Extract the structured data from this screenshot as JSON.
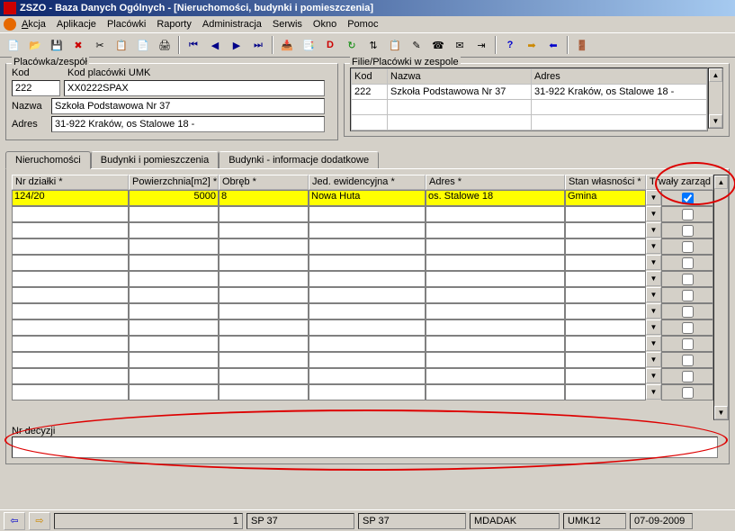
{
  "title": "ZSZO - Baza Danych Ogólnych - [Nieruchomości, budynki i pomieszczenia]",
  "menu": [
    "Akcja",
    "Aplikacje",
    "Placówki",
    "Raporty",
    "Administracja",
    "Serwis",
    "Okno",
    "Pomoc"
  ],
  "left": {
    "legend": "Placówka/zespół",
    "kod_label": "Kod",
    "kod": "222",
    "kodpl_label": "Kod placówki UMK",
    "kodpl": "XX0222SPAX",
    "nazwa_label": "Nazwa",
    "nazwa": "Szkoła Podstawowa Nr 37",
    "adres_label": "Adres",
    "adres": "31-922 Kraków, os Stalowe 18 -"
  },
  "right": {
    "legend": "Filie/Placówki w zespole",
    "cols": [
      "Kod",
      "Nazwa",
      "Adres"
    ],
    "row": [
      "222",
      "Szkoła Podstawowa Nr 37",
      "31-922 Kraków, os Stalowe 18 -"
    ]
  },
  "tabs": [
    "Nieruchomości",
    "Budynki i pomieszczenia",
    "Budynki - informacje dodatkowe"
  ],
  "grid": {
    "headers": [
      "Nr działki *",
      "Powierzchnia[m2] *",
      "Obręb *",
      "Jed. ewidencyjna *",
      "Adres *",
      "Stan własności *",
      "Trwały zarząd"
    ],
    "row": [
      "124/20",
      "5000",
      "8",
      "Nowa Huta",
      "os. Stalowe 18",
      "Gmina"
    ]
  },
  "nrdec_label": "Nr decyzji",
  "status": {
    "n": "1",
    "s1": "SP 37",
    "s2": "SP 37",
    "s3": "MDADAK",
    "s4": "UMK12",
    "s5": "07-09-2009"
  }
}
